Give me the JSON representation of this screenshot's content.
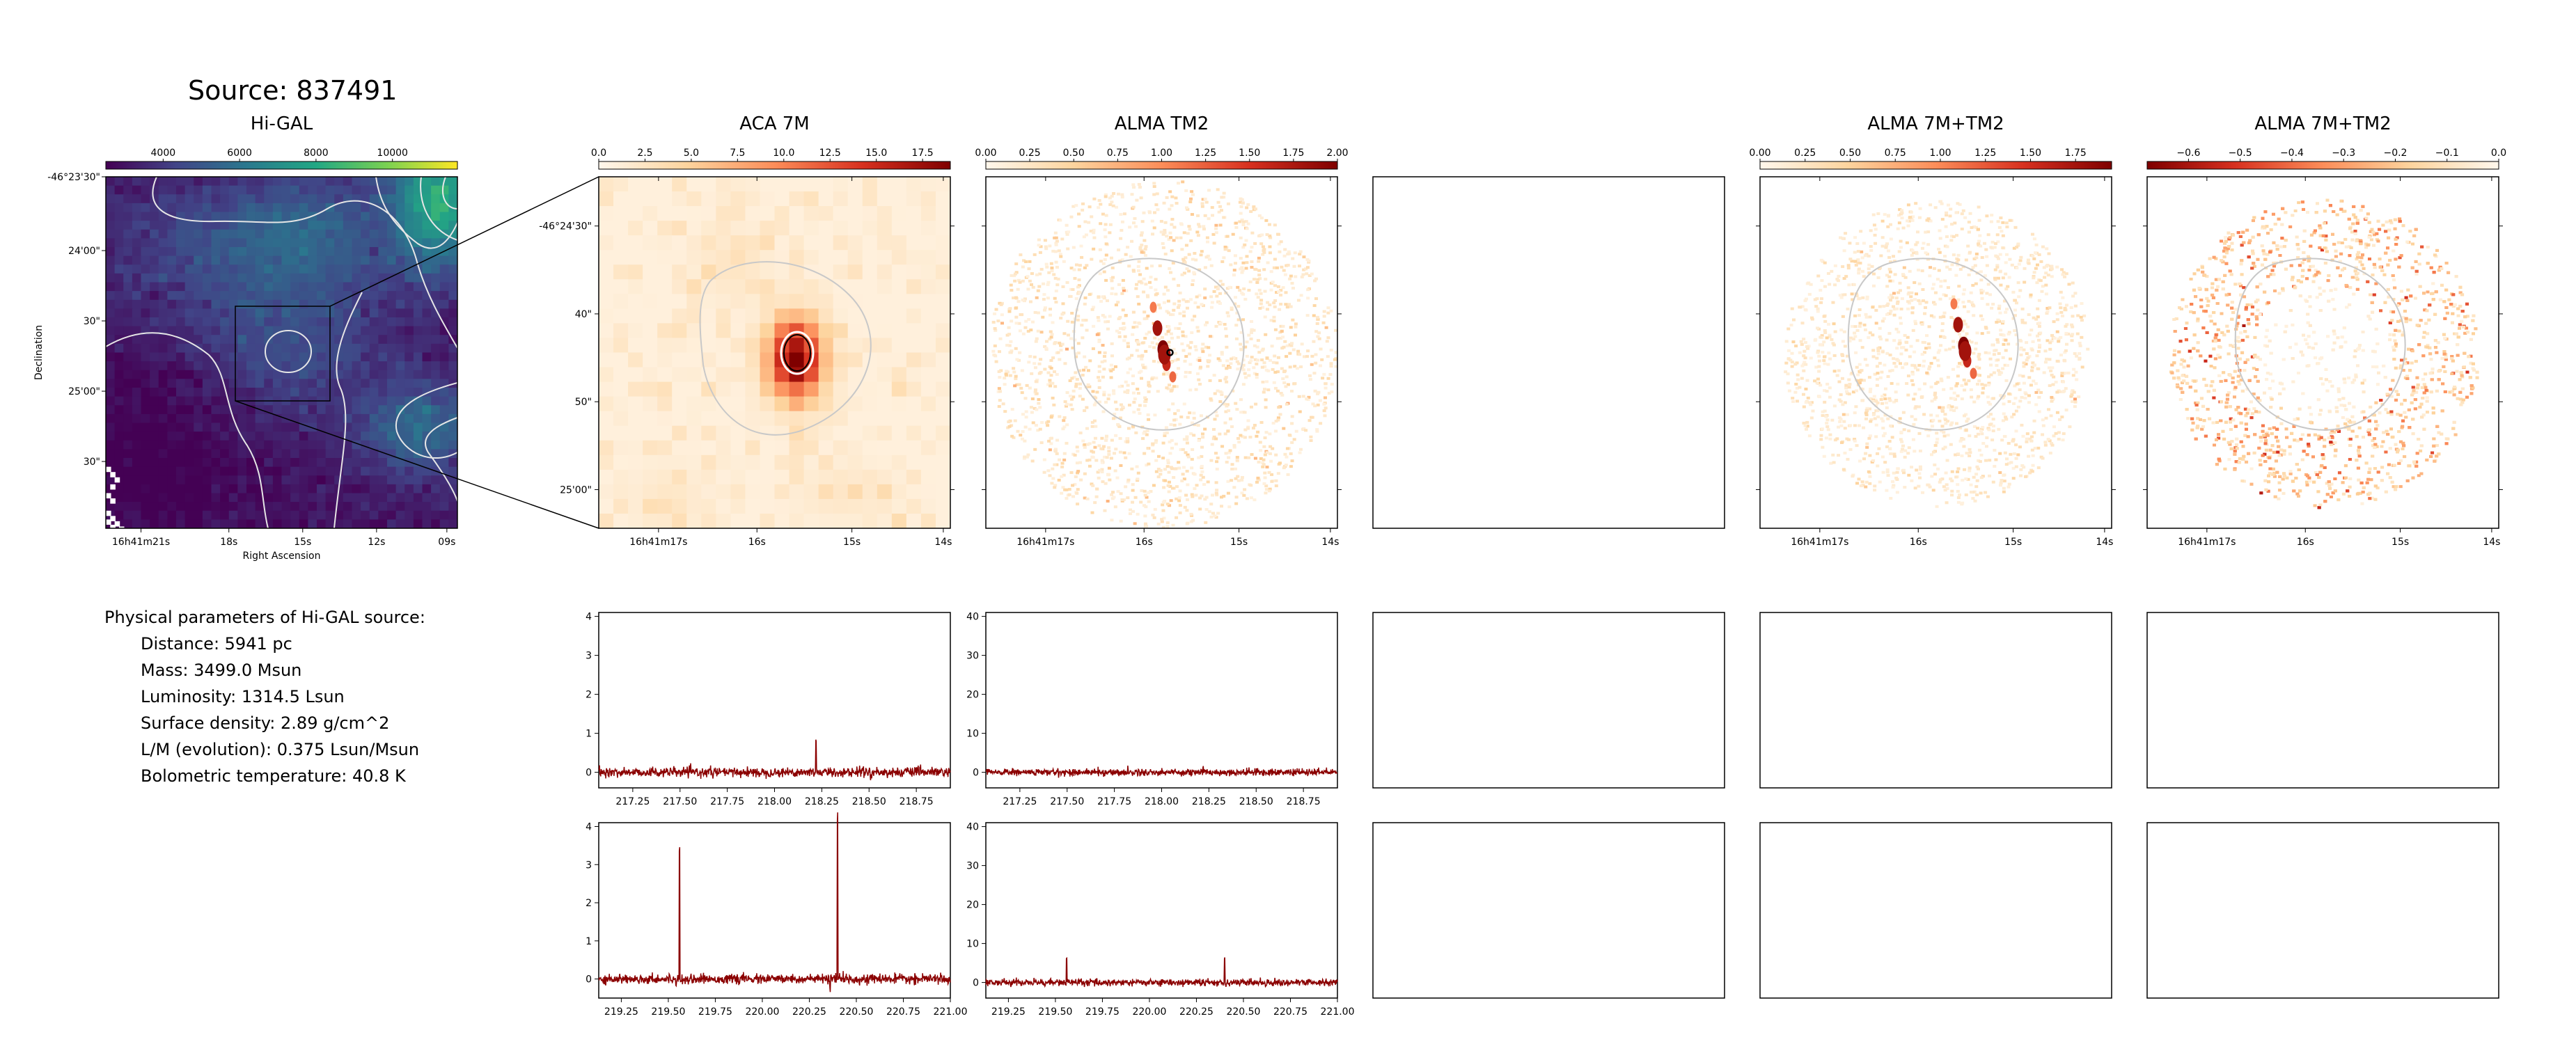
{
  "source_title": "Source: 837491",
  "params": {
    "heading": "Physical parameters of Hi-GAL source:",
    "lines": [
      "Distance: 5941 pc",
      "Mass: 3499.0 Msun",
      "Luminosity: 1314.5 Lsun",
      "Surface density: 2.89 g/cm^2",
      "L/M (evolution): 0.375 Lsun/Msun",
      "Bolometric temperature: 40.8 K"
    ]
  },
  "colors": {
    "spectrum_line": "#8b0000",
    "contour": "#c8c8c8",
    "frame": "#000000",
    "viridis_stops": [
      "#440154",
      "#414487",
      "#2a788e",
      "#22a884",
      "#7ad151",
      "#fde725"
    ],
    "orrd_stops": [
      "#fff7ec",
      "#fdd49e",
      "#fc8d59",
      "#d7301f",
      "#7f0000"
    ]
  },
  "chart_data": [
    {
      "type": "heatmap",
      "id": "higal",
      "title": "Hi-GAL",
      "colormap": "viridis",
      "colorbar_ticks": [
        "4000",
        "6000",
        "8000",
        "10000"
      ],
      "colorbar_tick_values": [
        4000,
        6000,
        8000,
        10000
      ],
      "colorbar_range": [
        2500,
        11700
      ],
      "xlabel": "Right Ascension",
      "ylabel": "Declination",
      "x_ticks": [
        "16h41m21s",
        "18s",
        "15s",
        "12s",
        "09s"
      ],
      "y_ticks": [
        "-46°23'30\"",
        "24'00\"",
        "30\"",
        "25'00\"",
        "30\""
      ],
      "inset_box": true,
      "grid": false
    },
    {
      "type": "heatmap",
      "id": "aca7m",
      "title": "ACA 7M",
      "colormap": "OrRd",
      "colorbar_ticks": [
        "0.0",
        "2.5",
        "5.0",
        "7.5",
        "10.0",
        "12.5",
        "15.0",
        "17.5"
      ],
      "colorbar_range": [
        0.0,
        19.0
      ],
      "x_ticks": [
        "16h41m17s",
        "16s",
        "15s",
        "14s"
      ],
      "y_ticks": [
        "-46°24'30\"",
        "40\"",
        "50\"",
        "25'00\""
      ],
      "grid": false
    },
    {
      "type": "heatmap",
      "id": "almatm2",
      "title": "ALMA TM2",
      "colormap": "OrRd",
      "colorbar_ticks": [
        "0.00",
        "0.25",
        "0.50",
        "0.75",
        "1.00",
        "1.25",
        "1.50",
        "1.75",
        "2.00"
      ],
      "colorbar_range": [
        0.0,
        2.0
      ],
      "x_ticks": [
        "16h41m17s",
        "16s",
        "15s",
        "14s"
      ],
      "grid": false
    },
    {
      "type": "heatmap",
      "id": "alma7mtm2",
      "title": "ALMA 7M+TM2",
      "colormap": "OrRd",
      "colorbar_ticks": [
        "0.00",
        "0.25",
        "0.50",
        "0.75",
        "1.00",
        "1.25",
        "1.50",
        "1.75"
      ],
      "colorbar_range": [
        0.0,
        1.95
      ],
      "x_ticks": [
        "16h41m17s",
        "16s",
        "15s",
        "14s"
      ],
      "grid": false
    },
    {
      "type": "heatmap",
      "id": "alma7mtm2neg",
      "title": "ALMA 7M+TM2",
      "colormap": "OrRd_r",
      "colorbar_ticks": [
        "−0.6",
        "−0.5",
        "−0.4",
        "−0.3",
        "−0.2",
        "−0.1",
        "0.0"
      ],
      "colorbar_range": [
        -0.68,
        0.0
      ],
      "x_ticks": [
        "16h41m17s",
        "16s",
        "15s",
        "14s"
      ],
      "grid": false
    },
    {
      "type": "line",
      "id": "spec_aca_1",
      "xlim": [
        217.07,
        218.93
      ],
      "ylim": [
        -0.4,
        4.1
      ],
      "x_ticks": [
        "217.25",
        "217.50",
        "217.75",
        "218.00",
        "218.25",
        "218.50",
        "218.75"
      ],
      "y_ticks": [
        "0",
        "1",
        "2",
        "3",
        "4"
      ],
      "series": [
        {
          "noise": 0.06,
          "peaks": [
            [
              218.22,
              0.85
            ],
            [
              218.45,
              0.15
            ],
            [
              218.47,
              0.2
            ],
            [
              218.76,
              0.12
            ]
          ]
        }
      ]
    },
    {
      "type": "line",
      "id": "spec_tm2_1",
      "xlim": [
        217.07,
        218.93
      ],
      "ylim": [
        -4,
        41
      ],
      "x_ticks": [
        "217.25",
        "217.50",
        "217.75",
        "218.00",
        "218.25",
        "218.50",
        "218.75"
      ],
      "y_ticks": [
        "0",
        "10",
        "20",
        "30",
        "40"
      ],
      "series": [
        {
          "noise": 0.45,
          "peaks": [
            [
              218.22,
              1.2
            ],
            [
              218.45,
              0.6
            ]
          ]
        }
      ]
    },
    {
      "type": "line",
      "id": "spec_aca_2",
      "xlim": [
        219.13,
        221.0
      ],
      "ylim": [
        -0.5,
        4.1
      ],
      "x_ticks": [
        "219.25",
        "219.50",
        "219.75",
        "220.00",
        "220.25",
        "220.50",
        "220.75",
        "221.00"
      ],
      "y_ticks": [
        "0",
        "1",
        "2",
        "3",
        "4"
      ],
      "series": [
        {
          "noise": 0.06,
          "peaks": [
            [
              219.56,
              3.45
            ],
            [
              220.4,
              4.2
            ],
            [
              220.36,
              -0.35
            ],
            [
              220.43,
              0.25
            ],
            [
              219.54,
              -0.15
            ]
          ]
        }
      ]
    },
    {
      "type": "line",
      "id": "spec_tm2_2",
      "xlim": [
        219.13,
        221.0
      ],
      "ylim": [
        -4,
        41
      ],
      "x_ticks": [
        "219.25",
        "219.50",
        "219.75",
        "220.00",
        "220.25",
        "220.50",
        "220.75",
        "221.00"
      ],
      "y_ticks": [
        "0",
        "10",
        "20",
        "30",
        "40"
      ],
      "series": [
        {
          "noise": 0.45,
          "peaks": [
            [
              219.56,
              6.2
            ],
            [
              220.4,
              6.6
            ]
          ]
        }
      ]
    }
  ]
}
